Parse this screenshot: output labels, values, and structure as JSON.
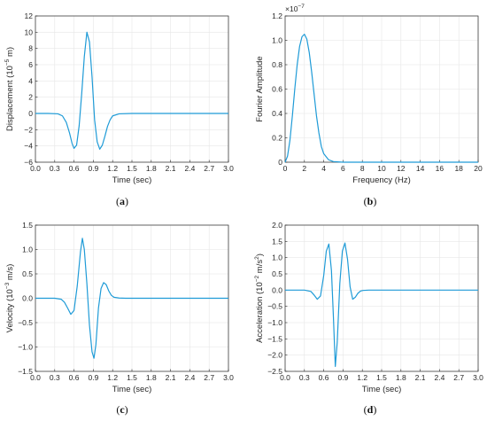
{
  "colors": {
    "line": "#1f9bd7"
  },
  "chart_data": [
    {
      "id": "a",
      "type": "line",
      "caption_prefix": "(",
      "caption_letter": "a",
      "caption_suffix": ")",
      "xlabel": "Time (sec)",
      "ylabel_pre": "Displacement (10",
      "ylabel_sup": "−5",
      "ylabel_post": " m)",
      "exponent_label": "",
      "xlim": [
        0,
        3.0
      ],
      "ylim": [
        -6,
        12
      ],
      "xticks": [
        "0.0",
        "0.3",
        "0.6",
        "0.9",
        "1.2",
        "1.5",
        "1.8",
        "2.1",
        "2.4",
        "2.7",
        "3.0"
      ],
      "yticks": [
        "−6",
        "−4",
        "−2",
        "0",
        "2",
        "4",
        "6",
        "8",
        "10",
        "12"
      ],
      "series": [
        {
          "x": [
            0.0,
            0.2,
            0.35,
            0.42,
            0.48,
            0.53,
            0.57,
            0.6,
            0.64,
            0.68,
            0.72,
            0.76,
            0.8,
            0.84,
            0.88,
            0.92,
            0.96,
            1.0,
            1.04,
            1.08,
            1.12,
            1.16,
            1.2,
            1.3,
            1.5,
            2.0,
            3.0
          ],
          "y": [
            0,
            0,
            -0.05,
            -0.3,
            -1.1,
            -2.4,
            -3.7,
            -4.3,
            -3.9,
            -1.5,
            2.5,
            7.0,
            10.0,
            8.8,
            4.5,
            -0.8,
            -3.5,
            -4.4,
            -3.9,
            -2.8,
            -1.6,
            -0.8,
            -0.3,
            -0.05,
            0,
            0,
            0
          ]
        }
      ]
    },
    {
      "id": "b",
      "type": "line",
      "caption_prefix": "(",
      "caption_letter": "b",
      "caption_suffix": ")",
      "xlabel": "Frequency (Hz)",
      "ylabel_pre": "Fourier Amplitude",
      "ylabel_sup": "",
      "ylabel_post": "",
      "exponent_label": "×10",
      "exponent_sup": "−7",
      "xlim": [
        0,
        20
      ],
      "ylim": [
        0,
        1.2
      ],
      "xticks": [
        "0",
        "2",
        "4",
        "6",
        "8",
        "10",
        "12",
        "14",
        "16",
        "18",
        "20"
      ],
      "yticks": [
        "0",
        "0.2",
        "0.4",
        "0.6",
        "0.8",
        "1.0",
        "1.2"
      ],
      "series": [
        {
          "x": [
            0,
            0.25,
            0.5,
            0.75,
            1.0,
            1.25,
            1.5,
            1.75,
            2.0,
            2.25,
            2.5,
            2.75,
            3.0,
            3.25,
            3.5,
            3.75,
            4.0,
            4.5,
            5.0,
            6.0,
            8.0,
            12.0,
            20.0
          ],
          "y": [
            0,
            0.05,
            0.18,
            0.38,
            0.6,
            0.8,
            0.95,
            1.03,
            1.05,
            1.01,
            0.9,
            0.74,
            0.56,
            0.38,
            0.24,
            0.13,
            0.07,
            0.02,
            0.005,
            0,
            0,
            0,
            0
          ]
        }
      ]
    },
    {
      "id": "c",
      "type": "line",
      "caption_prefix": "(",
      "caption_letter": "c",
      "caption_suffix": ")",
      "xlabel": "Time (sec)",
      "ylabel_pre": "Velocity (10",
      "ylabel_sup": "−3",
      "ylabel_post": " m/s)",
      "exponent_label": "",
      "xlim": [
        0,
        3.0
      ],
      "ylim": [
        -1.5,
        1.5
      ],
      "xticks": [
        "0.0",
        "0.3",
        "0.6",
        "0.9",
        "1.2",
        "1.5",
        "1.8",
        "2.1",
        "2.4",
        "2.7",
        "3.0"
      ],
      "yticks": [
        "−1.5",
        "−1.0",
        "−0.5",
        "0.0",
        "0.5",
        "1.0",
        "1.5"
      ],
      "series": [
        {
          "x": [
            0.0,
            0.3,
            0.4,
            0.45,
            0.5,
            0.55,
            0.6,
            0.65,
            0.7,
            0.73,
            0.76,
            0.8,
            0.84,
            0.88,
            0.91,
            0.94,
            0.98,
            1.02,
            1.06,
            1.1,
            1.14,
            1.18,
            1.22,
            1.3,
            1.4,
            2.0,
            3.0
          ],
          "y": [
            0,
            0,
            -0.02,
            -0.08,
            -0.2,
            -0.33,
            -0.25,
            0.25,
            0.95,
            1.23,
            1.0,
            0.3,
            -0.55,
            -1.1,
            -1.23,
            -0.95,
            -0.2,
            0.2,
            0.32,
            0.28,
            0.15,
            0.06,
            0.02,
            0.005,
            0,
            0,
            0
          ]
        }
      ]
    },
    {
      "id": "d",
      "type": "line",
      "caption_prefix": "(",
      "caption_letter": "d",
      "caption_suffix": ")",
      "xlabel": "Time (sec)",
      "ylabel_pre": "Acceleration (10",
      "ylabel_sup": "−2",
      "ylabel_post": " m/s",
      "ylabel_sup2": "2",
      "ylabel_post2": ")",
      "exponent_label": "",
      "xlim": [
        0,
        3.0
      ],
      "ylim": [
        -2.5,
        2.0
      ],
      "xticks": [
        "0.0",
        "0.3",
        "0.6",
        "0.9",
        "1.2",
        "1.5",
        "1.8",
        "2.1",
        "2.4",
        "2.7",
        "3.0"
      ],
      "yticks": [
        "−2.5",
        "−2.0",
        "−1.5",
        "−1.0",
        "−0.5",
        "0.0",
        "0.5",
        "1.0",
        "1.5",
        "2.0"
      ],
      "series": [
        {
          "x": [
            0.0,
            0.3,
            0.4,
            0.45,
            0.5,
            0.55,
            0.6,
            0.64,
            0.68,
            0.72,
            0.75,
            0.78,
            0.81,
            0.85,
            0.89,
            0.93,
            0.97,
            1.01,
            1.05,
            1.09,
            1.13,
            1.17,
            1.21,
            1.3,
            1.5,
            2.0,
            3.0
          ],
          "y": [
            0,
            0,
            -0.04,
            -0.15,
            -0.28,
            -0.18,
            0.45,
            1.2,
            1.42,
            0.6,
            -0.8,
            -2.35,
            -1.6,
            0.2,
            1.2,
            1.45,
            0.95,
            0.1,
            -0.28,
            -0.22,
            -0.1,
            -0.03,
            -0.01,
            0,
            0,
            0,
            0
          ]
        }
      ]
    }
  ]
}
